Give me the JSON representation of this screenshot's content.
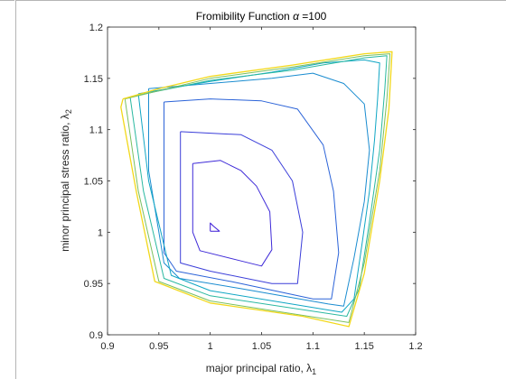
{
  "chart_data": {
    "type": "line",
    "title": "Fromibility Function α =100",
    "title_prefix": "Fromibility Function ",
    "title_alpha": "α",
    "title_suffix": " =100",
    "xlabel": "major principal ratio, λ1",
    "xlabel_main": "major principal ratio, ",
    "xlabel_sym": "λ",
    "xlabel_sub": "1",
    "ylabel": "minor principal stress ratio, λ2",
    "ylabel_main": "minor principal stress ratio, ",
    "ylabel_sym": "λ",
    "ylabel_sub": "2",
    "xlim": [
      0.9,
      1.2
    ],
    "ylim": [
      0.9,
      1.2
    ],
    "xticks": [
      "0.9",
      "0.95",
      "1",
      "1.05",
      "1.1",
      "1.15",
      "1.2"
    ],
    "yticks": [
      "0.9",
      "0.95",
      "1",
      "1.05",
      "1.1",
      "1.15",
      "1.2"
    ],
    "grid": false,
    "legend": "none",
    "plot_type_detail": "contour",
    "series": [
      {
        "color": "#3b1bd6",
        "points": [
          [
            1.0,
            1.001
          ],
          [
            1.009,
            1.001
          ],
          [
            1.003,
            1.006
          ],
          [
            1.0,
            1.009
          ],
          [
            1.0,
            1.001
          ]
        ]
      },
      {
        "color": "#3f2bd8",
        "points": [
          [
            0.983,
            1.067
          ],
          [
            1.01,
            1.07
          ],
          [
            1.03,
            1.06
          ],
          [
            1.045,
            1.045
          ],
          [
            1.058,
            1.02
          ],
          [
            1.06,
            0.983
          ],
          [
            1.05,
            0.967
          ],
          [
            1.03,
            0.972
          ],
          [
            0.99,
            0.982
          ],
          [
            0.983,
            1.0
          ],
          [
            0.983,
            1.067
          ]
        ]
      },
      {
        "color": "#3b3ed9",
        "points": [
          [
            0.971,
            1.098
          ],
          [
            1.03,
            1.095
          ],
          [
            1.06,
            1.08
          ],
          [
            1.08,
            1.05
          ],
          [
            1.09,
            1.0
          ],
          [
            1.085,
            0.95
          ],
          [
            1.06,
            0.95
          ],
          [
            1.0,
            0.962
          ],
          [
            0.971,
            0.97
          ],
          [
            0.971,
            1.098
          ]
        ]
      },
      {
        "color": "#2b63d8",
        "points": [
          [
            0.955,
            1.127
          ],
          [
            1.0,
            1.13
          ],
          [
            1.05,
            1.128
          ],
          [
            1.085,
            1.12
          ],
          [
            1.11,
            1.085
          ],
          [
            1.12,
            1.04
          ],
          [
            1.125,
            0.98
          ],
          [
            1.118,
            0.935
          ],
          [
            1.1,
            0.935
          ],
          [
            1.02,
            0.952
          ],
          [
            0.967,
            0.962
          ],
          [
            0.955,
            0.98
          ],
          [
            0.955,
            1.127
          ]
        ]
      },
      {
        "color": "#1a8cd0",
        "points": [
          [
            0.94,
            1.14
          ],
          [
            1.0,
            1.145
          ],
          [
            1.06,
            1.15
          ],
          [
            1.1,
            1.155
          ],
          [
            1.13,
            1.145
          ],
          [
            1.15,
            1.125
          ],
          [
            1.155,
            1.08
          ],
          [
            1.15,
            1.03
          ],
          [
            1.14,
            0.975
          ],
          [
            1.13,
            0.928
          ],
          [
            1.115,
            0.93
          ],
          [
            1.03,
            0.945
          ],
          [
            0.97,
            0.955
          ],
          [
            0.955,
            0.97
          ],
          [
            0.94,
            1.06
          ],
          [
            0.94,
            1.14
          ]
        ]
      },
      {
        "color": "#10a6c4",
        "points": [
          [
            0.93,
            1.135
          ],
          [
            1.0,
            1.147
          ],
          [
            1.06,
            1.156
          ],
          [
            1.11,
            1.165
          ],
          [
            1.15,
            1.168
          ],
          [
            1.165,
            1.165
          ],
          [
            1.163,
            1.13
          ],
          [
            1.16,
            1.09
          ],
          [
            1.155,
            1.04
          ],
          [
            1.148,
            0.99
          ],
          [
            1.14,
            0.935
          ],
          [
            1.128,
            0.922
          ],
          [
            1.0,
            0.943
          ],
          [
            0.962,
            0.958
          ],
          [
            0.94,
            1.05
          ],
          [
            0.93,
            1.135
          ]
        ]
      },
      {
        "color": "#2ab8a0",
        "points": [
          [
            0.922,
            1.132
          ],
          [
            1.0,
            1.148
          ],
          [
            1.08,
            1.158
          ],
          [
            1.15,
            1.17
          ],
          [
            1.172,
            1.172
          ],
          [
            1.17,
            1.14
          ],
          [
            1.165,
            1.08
          ],
          [
            1.155,
            1.01
          ],
          [
            1.145,
            0.945
          ],
          [
            1.133,
            0.918
          ],
          [
            1.0,
            0.938
          ],
          [
            0.955,
            0.955
          ],
          [
            0.935,
            1.04
          ],
          [
            0.922,
            1.132
          ]
        ]
      },
      {
        "color": "#7ac060",
        "points": [
          [
            0.917,
            1.13
          ],
          [
            1.0,
            1.15
          ],
          [
            1.08,
            1.161
          ],
          [
            1.15,
            1.172
          ],
          [
            1.175,
            1.174
          ],
          [
            1.172,
            1.13
          ],
          [
            1.165,
            1.06
          ],
          [
            1.15,
            0.97
          ],
          [
            1.135,
            0.912
          ],
          [
            1.0,
            0.933
          ],
          [
            0.95,
            0.952
          ],
          [
            0.93,
            1.04
          ],
          [
            0.917,
            1.13
          ]
        ]
      },
      {
        "color": "#f2d81a",
        "points": [
          [
            0.915,
            1.13
          ],
          [
            0.95,
            1.14
          ],
          [
            1.0,
            1.152
          ],
          [
            1.08,
            1.163
          ],
          [
            1.15,
            1.174
          ],
          [
            1.177,
            1.176
          ],
          [
            1.174,
            1.12
          ],
          [
            1.165,
            1.05
          ],
          [
            1.15,
            0.96
          ],
          [
            1.135,
            0.908
          ],
          [
            1.09,
            0.918
          ],
          [
            1.0,
            0.931
          ],
          [
            0.946,
            0.952
          ],
          [
            0.928,
            1.04
          ],
          [
            0.913,
            1.122
          ],
          [
            0.915,
            1.13
          ]
        ]
      }
    ]
  }
}
